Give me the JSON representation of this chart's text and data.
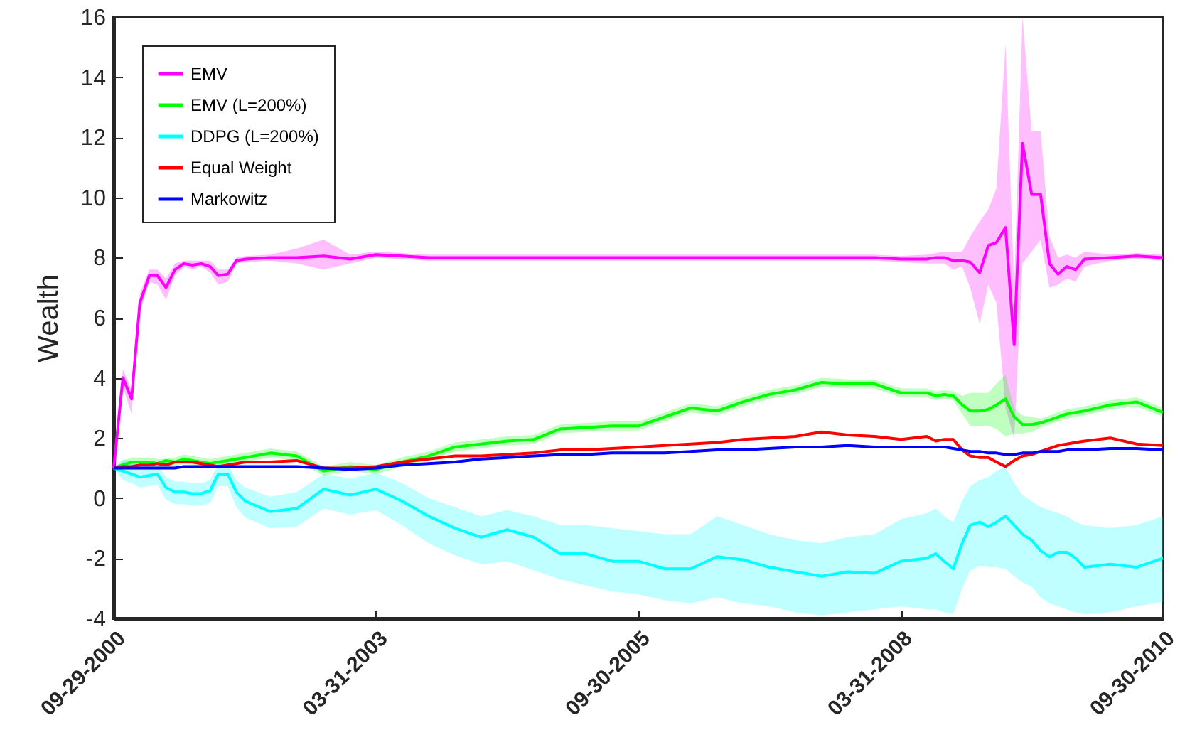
{
  "chart_data": {
    "type": "line",
    "ylabel": "Wealth",
    "legend": "top left",
    "xlim": [
      "2000-09-29",
      "2010-09-30"
    ],
    "xticks": [
      {
        "value": "2000-09-29",
        "label": "09-29-2000"
      },
      {
        "value": "2003-03-31",
        "label": "03-31-2003"
      },
      {
        "value": "2005-09-30",
        "label": "09-30-2005"
      },
      {
        "value": "2008-03-31",
        "label": "03-31-2008"
      },
      {
        "value": "2010-09-30",
        "label": "09-30-2010"
      }
    ],
    "ylim": [
      -4,
      16
    ],
    "yticks": [
      -4,
      -2,
      0,
      2,
      4,
      6,
      8,
      10,
      12,
      14,
      16
    ],
    "x": [
      "2000-09-29",
      "2000-10-31",
      "2000-11-30",
      "2000-12-29",
      "2001-01-31",
      "2001-02-28",
      "2001-03-30",
      "2001-04-30",
      "2001-05-31",
      "2001-06-29",
      "2001-07-31",
      "2001-08-31",
      "2001-09-28",
      "2001-10-31",
      "2001-11-30",
      "2001-12-31",
      "2002-03-28",
      "2002-06-28",
      "2002-09-30",
      "2002-12-31",
      "2003-03-31",
      "2003-06-30",
      "2003-09-30",
      "2003-12-31",
      "2004-03-31",
      "2004-06-30",
      "2004-09-30",
      "2004-12-31",
      "2005-03-31",
      "2005-06-30",
      "2005-09-30",
      "2005-12-30",
      "2006-03-31",
      "2006-06-30",
      "2006-09-29",
      "2006-12-29",
      "2007-03-30",
      "2007-06-29",
      "2007-09-28",
      "2007-12-31",
      "2008-03-31",
      "2008-06-30",
      "2008-07-31",
      "2008-08-29",
      "2008-09-30",
      "2008-10-31",
      "2008-11-28",
      "2008-12-31",
      "2009-01-30",
      "2009-02-27",
      "2009-03-31",
      "2009-04-30",
      "2009-05-29",
      "2009-06-30",
      "2009-07-31",
      "2009-08-31",
      "2009-09-30",
      "2009-10-30",
      "2009-11-30",
      "2009-12-31",
      "2010-03-31",
      "2010-06-30",
      "2010-09-30"
    ],
    "series": [
      {
        "name": "EMV",
        "color": "#ff00ff",
        "values": [
          1.0,
          4.0,
          3.3,
          6.5,
          7.4,
          7.4,
          7.0,
          7.6,
          7.8,
          7.75,
          7.8,
          7.7,
          7.4,
          7.45,
          7.9,
          7.95,
          8.0,
          8.0,
          8.05,
          7.95,
          8.1,
          8.05,
          8.0,
          8.0,
          8.0,
          8.0,
          8.0,
          8.0,
          8.0,
          8.0,
          8.0,
          8.0,
          8.0,
          8.0,
          8.0,
          8.0,
          8.0,
          8.0,
          8.0,
          8.0,
          7.95,
          7.95,
          8.0,
          8.0,
          7.9,
          7.9,
          7.85,
          7.5,
          8.4,
          8.5,
          9.0,
          5.1,
          11.8,
          10.1,
          10.1,
          7.8,
          7.45,
          7.7,
          7.6,
          7.95,
          8.0,
          8.05,
          8.0
        ],
        "lower": [
          1.0,
          3.7,
          2.8,
          6.2,
          7.2,
          7.1,
          6.6,
          7.4,
          7.7,
          7.6,
          7.7,
          7.5,
          7.1,
          7.2,
          7.8,
          7.85,
          7.9,
          7.8,
          7.6,
          7.8,
          8.0,
          7.95,
          7.9,
          7.9,
          7.9,
          7.9,
          7.9,
          7.9,
          7.9,
          7.9,
          7.9,
          7.9,
          7.9,
          7.9,
          7.9,
          7.9,
          7.9,
          7.9,
          7.9,
          7.9,
          7.85,
          7.8,
          7.8,
          7.8,
          7.6,
          7.7,
          7.0,
          5.8,
          7.1,
          6.5,
          3.0,
          2.0,
          7.8,
          8.2,
          8.6,
          7.0,
          7.1,
          7.3,
          7.2,
          7.7,
          7.9,
          7.95,
          7.9
        ],
        "upper": [
          1.0,
          4.3,
          3.6,
          6.8,
          7.6,
          7.6,
          7.3,
          7.8,
          7.9,
          7.9,
          7.9,
          7.9,
          7.6,
          7.6,
          8.0,
          8.05,
          8.1,
          8.3,
          8.6,
          8.1,
          8.2,
          8.15,
          8.1,
          8.1,
          8.1,
          8.1,
          8.1,
          8.1,
          8.1,
          8.1,
          8.1,
          8.1,
          8.1,
          8.1,
          8.1,
          8.1,
          8.1,
          8.1,
          8.1,
          8.1,
          8.05,
          8.1,
          8.15,
          8.2,
          8.2,
          8.2,
          8.7,
          9.2,
          9.6,
          10.3,
          15.1,
          7.0,
          16.0,
          12.2,
          12.2,
          8.7,
          8.0,
          8.1,
          8.0,
          8.2,
          8.1,
          8.15,
          8.1
        ]
      },
      {
        "name": "EMV (L=200%)",
        "color": "#00ff00",
        "values": [
          1.0,
          1.1,
          1.2,
          1.2,
          1.2,
          1.15,
          1.25,
          1.2,
          1.3,
          1.25,
          1.2,
          1.15,
          1.2,
          1.25,
          1.3,
          1.35,
          1.5,
          1.4,
          0.9,
          1.05,
          0.95,
          1.2,
          1.4,
          1.7,
          1.8,
          1.9,
          1.95,
          2.3,
          2.35,
          2.4,
          2.4,
          2.7,
          3.0,
          2.9,
          3.2,
          3.45,
          3.6,
          3.85,
          3.8,
          3.8,
          3.5,
          3.5,
          3.4,
          3.45,
          3.4,
          3.1,
          2.9,
          2.9,
          2.95,
          3.1,
          3.3,
          2.7,
          2.45,
          2.45,
          2.5,
          2.6,
          2.7,
          2.8,
          2.85,
          2.9,
          3.1,
          3.2,
          2.85
        ],
        "lower": [
          1.0,
          0.95,
          1.05,
          1.05,
          1.05,
          1.0,
          1.0,
          1.05,
          1.15,
          1.1,
          1.05,
          1.0,
          1.05,
          1.1,
          1.15,
          1.2,
          1.35,
          1.25,
          0.75,
          0.9,
          0.8,
          1.05,
          1.25,
          1.55,
          1.65,
          1.75,
          1.8,
          2.15,
          2.2,
          2.25,
          2.25,
          2.55,
          2.85,
          2.75,
          3.05,
          3.3,
          3.45,
          3.7,
          3.65,
          3.65,
          3.35,
          3.35,
          3.25,
          3.3,
          3.25,
          2.8,
          2.4,
          2.4,
          2.4,
          2.3,
          2.05,
          2.15,
          2.15,
          2.2,
          2.35,
          2.45,
          2.55,
          2.65,
          2.7,
          2.75,
          2.95,
          3.05,
          2.7
        ],
        "upper": [
          1.0,
          1.25,
          1.35,
          1.35,
          1.35,
          1.3,
          1.3,
          1.35,
          1.45,
          1.4,
          1.35,
          1.3,
          1.35,
          1.4,
          1.45,
          1.5,
          1.65,
          1.55,
          1.05,
          1.2,
          1.1,
          1.35,
          1.55,
          1.85,
          1.95,
          2.05,
          2.1,
          2.45,
          2.5,
          2.55,
          2.55,
          2.85,
          3.15,
          3.05,
          3.35,
          3.6,
          3.75,
          4.0,
          3.95,
          3.95,
          3.65,
          3.65,
          3.55,
          3.6,
          3.55,
          3.4,
          3.5,
          3.5,
          3.5,
          3.8,
          4.1,
          3.0,
          2.75,
          2.7,
          2.65,
          2.75,
          2.85,
          2.95,
          3.0,
          3.05,
          3.25,
          3.35,
          3.0
        ]
      },
      {
        "name": "DDPG (L=200%)",
        "color": "#00ffff",
        "values": [
          1.0,
          0.9,
          0.8,
          0.7,
          0.75,
          0.8,
          0.35,
          0.2,
          0.2,
          0.15,
          0.15,
          0.25,
          0.8,
          0.8,
          0.2,
          -0.1,
          -0.45,
          -0.35,
          0.3,
          0.1,
          0.3,
          -0.1,
          -0.6,
          -1.0,
          -1.3,
          -1.05,
          -1.3,
          -1.85,
          -1.85,
          -2.1,
          -2.1,
          -2.35,
          -2.35,
          -1.95,
          -2.05,
          -2.3,
          -2.45,
          -2.6,
          -2.45,
          -2.5,
          -2.1,
          -2.0,
          -1.85,
          -2.1,
          -2.35,
          -1.5,
          -0.9,
          -0.8,
          -0.95,
          -0.8,
          -0.6,
          -0.9,
          -1.2,
          -1.4,
          -1.75,
          -1.95,
          -1.8,
          -1.8,
          -2.0,
          -2.3,
          -2.2,
          -2.3,
          -2.0
        ],
        "lower": [
          1.0,
          0.6,
          0.5,
          0.35,
          0.4,
          0.45,
          -0.05,
          -0.2,
          -0.2,
          -0.25,
          -0.25,
          -0.15,
          0.4,
          0.4,
          -0.3,
          -0.65,
          -1.0,
          -0.95,
          -0.35,
          -0.55,
          -0.4,
          -0.9,
          -1.5,
          -1.9,
          -2.2,
          -2.1,
          -2.4,
          -2.7,
          -2.9,
          -3.1,
          -3.2,
          -3.4,
          -3.5,
          -3.3,
          -3.5,
          -3.6,
          -3.8,
          -3.9,
          -3.8,
          -3.7,
          -3.6,
          -3.7,
          -3.7,
          -3.8,
          -3.85,
          -3.0,
          -2.4,
          -2.25,
          -2.3,
          -2.3,
          -2.35,
          -2.6,
          -2.8,
          -2.95,
          -3.3,
          -3.5,
          -3.6,
          -3.7,
          -3.8,
          -3.85,
          -3.8,
          -3.6,
          -3.45
        ],
        "upper": [
          1.0,
          1.3,
          1.2,
          1.05,
          1.1,
          1.1,
          0.7,
          0.55,
          0.55,
          0.5,
          0.5,
          0.6,
          1.15,
          1.15,
          0.6,
          0.35,
          0.05,
          0.2,
          0.8,
          0.65,
          0.85,
          0.5,
          0.0,
          -0.3,
          -0.6,
          -0.4,
          -0.6,
          -0.9,
          -0.9,
          -1.0,
          -1.1,
          -1.2,
          -1.2,
          -0.6,
          -0.9,
          -1.2,
          -1.4,
          -1.5,
          -1.3,
          -1.2,
          -0.7,
          -0.5,
          -0.35,
          -0.6,
          -0.8,
          -0.1,
          0.4,
          0.6,
          0.7,
          0.9,
          1.05,
          0.5,
          0.1,
          -0.1,
          -0.3,
          -0.4,
          -0.5,
          -0.6,
          -0.8,
          -0.9,
          -1.0,
          -0.9,
          -0.6
        ]
      },
      {
        "name": "Equal Weight",
        "color": "#ff0000",
        "values": [
          1.0,
          1.05,
          1.05,
          1.1,
          1.1,
          1.15,
          1.1,
          1.2,
          1.2,
          1.2,
          1.15,
          1.1,
          1.05,
          1.1,
          1.15,
          1.2,
          1.2,
          1.25,
          1.0,
          1.0,
          1.05,
          1.2,
          1.3,
          1.4,
          1.4,
          1.45,
          1.5,
          1.6,
          1.6,
          1.65,
          1.7,
          1.75,
          1.8,
          1.85,
          1.95,
          2.0,
          2.05,
          2.2,
          2.1,
          2.05,
          1.95,
          2.05,
          1.9,
          1.95,
          1.95,
          1.6,
          1.4,
          1.35,
          1.35,
          1.2,
          1.05,
          1.25,
          1.4,
          1.45,
          1.55,
          1.65,
          1.75,
          1.8,
          1.85,
          1.9,
          2.0,
          1.8,
          1.75
        ]
      },
      {
        "name": "Markowitz",
        "color": "#0000ff",
        "values": [
          1.0,
          1.0,
          1.0,
          1.0,
          1.0,
          1.0,
          1.0,
          1.0,
          1.05,
          1.05,
          1.05,
          1.05,
          1.05,
          1.05,
          1.05,
          1.05,
          1.05,
          1.05,
          1.0,
          0.95,
          1.0,
          1.1,
          1.15,
          1.2,
          1.3,
          1.35,
          1.4,
          1.45,
          1.45,
          1.5,
          1.5,
          1.5,
          1.55,
          1.6,
          1.6,
          1.65,
          1.7,
          1.7,
          1.75,
          1.7,
          1.7,
          1.7,
          1.7,
          1.7,
          1.65,
          1.6,
          1.55,
          1.55,
          1.5,
          1.5,
          1.45,
          1.45,
          1.5,
          1.5,
          1.55,
          1.55,
          1.55,
          1.6,
          1.6,
          1.6,
          1.65,
          1.65,
          1.6
        ]
      }
    ]
  }
}
